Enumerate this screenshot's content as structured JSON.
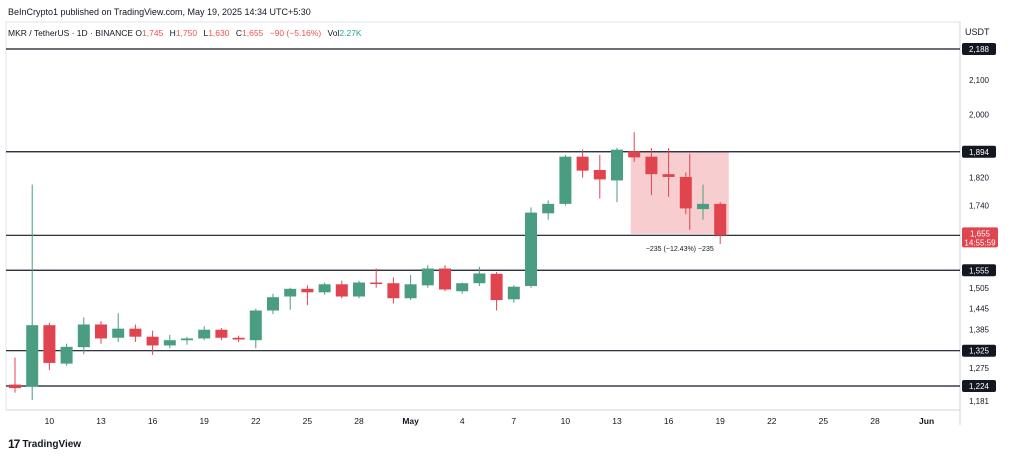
{
  "header": {
    "published": "BeInCrypto1 published on TradingView.com, May 19, 2025 14:34 UTC+5:30",
    "symbol": "MKR / TetherUS · 1D · BINANCE",
    "o_label": "O",
    "o_value": "1,745",
    "h_label": "H",
    "h_value": "1,750",
    "l_label": "L",
    "l_value": "1,630",
    "c_label": "C",
    "c_value": "1,655",
    "change": "−90 (−5.16%)",
    "vol_label": "Vol",
    "vol_value": "2.27K",
    "currency": "USDT"
  },
  "footer": {
    "brand": "TradingView",
    "logo": "17"
  },
  "colors": {
    "up": "#4a9d81",
    "down": "#e0444f",
    "level_line": "#131722",
    "range_fill": "#f5b8ba"
  },
  "chart_data": {
    "type": "candlestick",
    "yaxis_ticks": [
      "1,181",
      "1,275",
      "1,385",
      "1,445",
      "1,505",
      "1,740",
      "1,820",
      "2,000",
      "2,100"
    ],
    "xaxis_ticks": [
      "10",
      "13",
      "16",
      "19",
      "22",
      "25",
      "28",
      "May",
      "4",
      "7",
      "10",
      "13",
      "16",
      "19",
      "22",
      "25",
      "28",
      "Jun"
    ],
    "levels": [
      {
        "value": 2188,
        "label": "2,188"
      },
      {
        "value": 1894,
        "label": "1,894"
      },
      {
        "value": 1655,
        "label": "1,655"
      },
      {
        "value": 1555,
        "label": "1,555"
      },
      {
        "value": 1325,
        "label": "1,325"
      },
      {
        "value": 1224,
        "label": "1,224"
      }
    ],
    "price_label": {
      "value": "1,655",
      "countdown": "14:55:59"
    },
    "range_annotation": {
      "text": "−235 (−12.43%) −235",
      "from_date": "May 14",
      "to_date": "May 19",
      "top": 1894,
      "bottom": 1659
    },
    "candles": [
      {
        "date": "Apr 8",
        "o": 1228,
        "h": 1305,
        "l": 1205,
        "c": 1218
      },
      {
        "date": "Apr 9",
        "o": 1222,
        "h": 1800,
        "l": 1184,
        "c": 1398
      },
      {
        "date": "Apr 10",
        "o": 1398,
        "h": 1405,
        "l": 1270,
        "c": 1290
      },
      {
        "date": "Apr 11",
        "o": 1288,
        "h": 1345,
        "l": 1282,
        "c": 1336
      },
      {
        "date": "Apr 12",
        "o": 1335,
        "h": 1420,
        "l": 1315,
        "c": 1400
      },
      {
        "date": "Apr 13",
        "o": 1400,
        "h": 1410,
        "l": 1345,
        "c": 1360
      },
      {
        "date": "Apr 14",
        "o": 1362,
        "h": 1432,
        "l": 1350,
        "c": 1388
      },
      {
        "date": "Apr 15",
        "o": 1388,
        "h": 1400,
        "l": 1350,
        "c": 1365
      },
      {
        "date": "Apr 16",
        "o": 1365,
        "h": 1382,
        "l": 1313,
        "c": 1340
      },
      {
        "date": "Apr 17",
        "o": 1340,
        "h": 1370,
        "l": 1332,
        "c": 1355
      },
      {
        "date": "Apr 18",
        "o": 1355,
        "h": 1365,
        "l": 1342,
        "c": 1360
      },
      {
        "date": "Apr 19",
        "o": 1360,
        "h": 1395,
        "l": 1355,
        "c": 1385
      },
      {
        "date": "Apr 20",
        "o": 1385,
        "h": 1390,
        "l": 1355,
        "c": 1362
      },
      {
        "date": "Apr 21",
        "o": 1362,
        "h": 1368,
        "l": 1350,
        "c": 1357
      },
      {
        "date": "Apr 22",
        "o": 1355,
        "h": 1445,
        "l": 1332,
        "c": 1440
      },
      {
        "date": "Apr 23",
        "o": 1440,
        "h": 1488,
        "l": 1430,
        "c": 1478
      },
      {
        "date": "Apr 24",
        "o": 1480,
        "h": 1505,
        "l": 1442,
        "c": 1502
      },
      {
        "date": "Apr 25",
        "o": 1502,
        "h": 1512,
        "l": 1455,
        "c": 1492
      },
      {
        "date": "Apr 26",
        "o": 1492,
        "h": 1520,
        "l": 1485,
        "c": 1515
      },
      {
        "date": "Apr 27",
        "o": 1515,
        "h": 1525,
        "l": 1475,
        "c": 1480
      },
      {
        "date": "Apr 28",
        "o": 1480,
        "h": 1525,
        "l": 1475,
        "c": 1520
      },
      {
        "date": "Apr 29",
        "o": 1520,
        "h": 1560,
        "l": 1505,
        "c": 1518
      },
      {
        "date": "Apr 30",
        "o": 1518,
        "h": 1535,
        "l": 1460,
        "c": 1475
      },
      {
        "date": "May 1",
        "o": 1475,
        "h": 1542,
        "l": 1470,
        "c": 1515
      },
      {
        "date": "May 2",
        "o": 1512,
        "h": 1570,
        "l": 1505,
        "c": 1560
      },
      {
        "date": "May 3",
        "o": 1560,
        "h": 1570,
        "l": 1495,
        "c": 1500
      },
      {
        "date": "May 4",
        "o": 1495,
        "h": 1520,
        "l": 1488,
        "c": 1518
      },
      {
        "date": "May 5",
        "o": 1518,
        "h": 1565,
        "l": 1510,
        "c": 1546
      },
      {
        "date": "May 6",
        "o": 1545,
        "h": 1550,
        "l": 1440,
        "c": 1470
      },
      {
        "date": "May 7",
        "o": 1472,
        "h": 1512,
        "l": 1462,
        "c": 1508
      },
      {
        "date": "May 8",
        "o": 1510,
        "h": 1735,
        "l": 1505,
        "c": 1720
      },
      {
        "date": "May 9",
        "o": 1718,
        "h": 1755,
        "l": 1700,
        "c": 1745
      },
      {
        "date": "May 10",
        "o": 1745,
        "h": 1885,
        "l": 1740,
        "c": 1880
      },
      {
        "date": "May 11",
        "o": 1880,
        "h": 1900,
        "l": 1820,
        "c": 1840
      },
      {
        "date": "May 12",
        "o": 1842,
        "h": 1885,
        "l": 1760,
        "c": 1815
      },
      {
        "date": "May 13",
        "o": 1812,
        "h": 1905,
        "l": 1750,
        "c": 1900
      },
      {
        "date": "May 14",
        "o": 1895,
        "h": 1950,
        "l": 1865,
        "c": 1878
      },
      {
        "date": "May 15",
        "o": 1880,
        "h": 1905,
        "l": 1770,
        "c": 1830
      },
      {
        "date": "May 16",
        "o": 1830,
        "h": 1905,
        "l": 1765,
        "c": 1822
      },
      {
        "date": "May 17",
        "o": 1822,
        "h": 1835,
        "l": 1715,
        "c": 1732
      },
      {
        "date": "May 18",
        "o": 1730,
        "h": 1800,
        "l": 1700,
        "c": 1745
      },
      {
        "date": "May 19",
        "o": 1745,
        "h": 1750,
        "l": 1630,
        "c": 1655
      }
    ]
  }
}
